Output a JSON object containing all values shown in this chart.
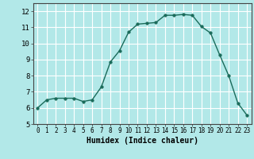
{
  "x": [
    0,
    1,
    2,
    3,
    4,
    5,
    6,
    7,
    8,
    9,
    10,
    11,
    12,
    13,
    14,
    15,
    16,
    17,
    18,
    19,
    20,
    21,
    22,
    23
  ],
  "y": [
    6.0,
    6.5,
    6.6,
    6.6,
    6.6,
    6.4,
    6.5,
    7.3,
    8.85,
    9.55,
    10.7,
    11.2,
    11.25,
    11.3,
    11.75,
    11.75,
    11.8,
    11.75,
    11.05,
    10.65,
    9.3,
    8.0,
    6.3,
    5.55
  ],
  "xlabel": "Humidex (Indice chaleur)",
  "xlim": [
    -0.5,
    23.5
  ],
  "ylim": [
    5,
    12.5
  ],
  "xticks": [
    0,
    1,
    2,
    3,
    4,
    5,
    6,
    7,
    8,
    9,
    10,
    11,
    12,
    13,
    14,
    15,
    16,
    17,
    18,
    19,
    20,
    21,
    22,
    23
  ],
  "yticks": [
    5,
    6,
    7,
    8,
    9,
    10,
    11,
    12
  ],
  "line_color": "#1a6b5a",
  "marker_size": 2.5,
  "bg_color": "#b2e8e8",
  "grid_color": "#ffffff"
}
